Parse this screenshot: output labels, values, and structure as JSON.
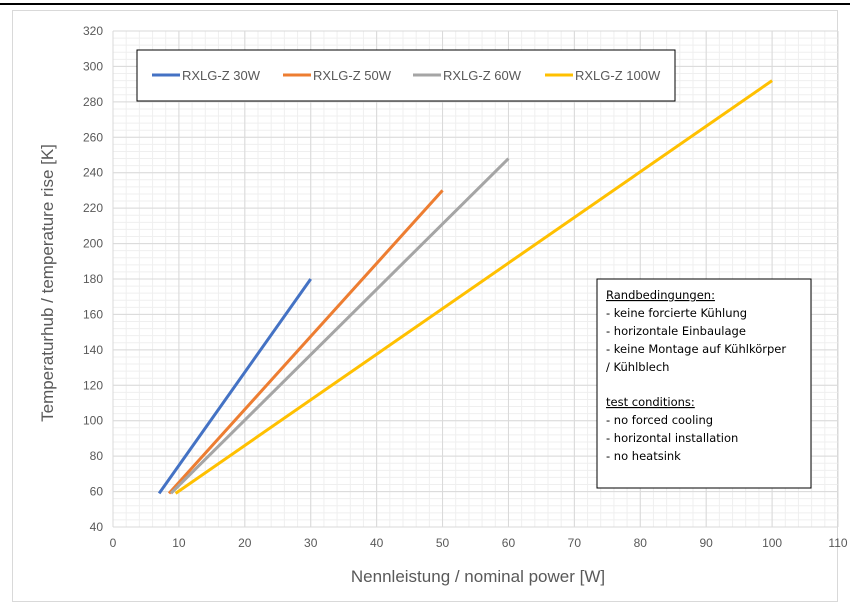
{
  "chart_data": {
    "type": "line",
    "xlabel": "Nennleistung / nominal power  [W]",
    "ylabel": "Temperaturhub / temperature rise [K]",
    "xlim": [
      0,
      110
    ],
    "ylim": [
      40,
      320
    ],
    "x_ticks": [
      "0",
      "10",
      "20",
      "30",
      "40",
      "50",
      "60",
      "70",
      "80",
      "90",
      "100",
      "110"
    ],
    "y_ticks": [
      "40",
      "60",
      "80",
      "100",
      "120",
      "140",
      "160",
      "180",
      "200",
      "220",
      "240",
      "260",
      "280",
      "300",
      "320"
    ],
    "x_tick_values": [
      0,
      10,
      20,
      30,
      40,
      50,
      60,
      70,
      80,
      90,
      100,
      110
    ],
    "y_tick_values": [
      40,
      60,
      80,
      100,
      120,
      140,
      160,
      180,
      200,
      220,
      240,
      260,
      280,
      300,
      320
    ],
    "grid": true,
    "legend_position": "top",
    "series": [
      {
        "name": "RXLG-Z 30W",
        "color": "#4472c4",
        "points": [
          [
            7,
            59
          ],
          [
            30,
            180
          ]
        ]
      },
      {
        "name": "RXLG-Z 50W",
        "color": "#ed7d31",
        "points": [
          [
            8.5,
            59
          ],
          [
            50,
            230
          ]
        ]
      },
      {
        "name": "RXLG-Z 60W",
        "color": "#a5a5a5",
        "points": [
          [
            8.8,
            59
          ],
          [
            60,
            248
          ]
        ]
      },
      {
        "name": "RXLG-Z 100W",
        "color": "#ffc000",
        "points": [
          [
            9.5,
            59
          ],
          [
            100,
            292
          ]
        ]
      }
    ],
    "annotation": {
      "heading_de": "Randbedingungen:",
      "lines_de": [
        "- keine forcierte Kühlung",
        "- horizontale Einbaulage",
        "- keine Montage auf Kühlkörper",
        "/ Kühlblech"
      ],
      "heading_en": "test conditions:",
      "lines_en": [
        "- no forced cooling",
        "- horizontal installation",
        "- no heatsink"
      ]
    }
  }
}
